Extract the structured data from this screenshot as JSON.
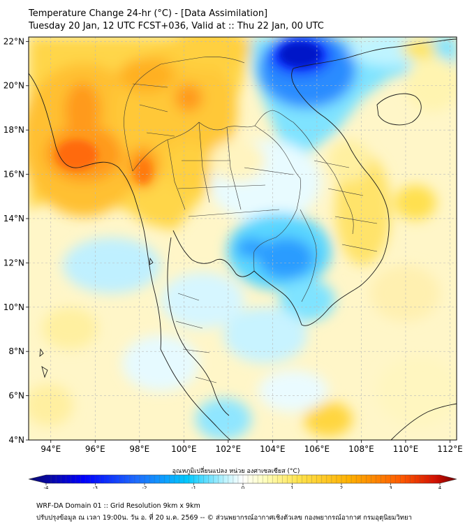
{
  "header": {
    "title_line1": "Temperature Change 24-hr (°C) - [Data Assimilation]",
    "title_line2": "Tuesday 20 Jan, 12 UTC FCST+036, Valid at :: Thu 22 Jan, 00 UTC"
  },
  "map": {
    "lat_labels": [
      "22°N",
      "20°N",
      "18°N",
      "16°N",
      "14°N",
      "12°N",
      "10°N",
      "8°N",
      "6°N",
      "4°N"
    ],
    "lat_values": [
      22,
      20,
      18,
      16,
      14,
      12,
      10,
      8,
      6,
      4
    ],
    "lon_labels": [
      "94°E",
      "96°E",
      "98°E",
      "100°E",
      "102°E",
      "104°E",
      "106°E",
      "108°E",
      "110°E",
      "112°E"
    ],
    "lon_values": [
      94,
      96,
      98,
      100,
      102,
      104,
      106,
      108,
      110,
      112
    ],
    "lon_range": [
      93,
      112.3
    ],
    "lat_range": [
      4,
      22.2
    ]
  },
  "colorbar": {
    "label": "อุณหภูมิเปลี่ยนแปลง หน่วย องศาเซลเซียส (°C)",
    "ticks": [
      "-4",
      "-3",
      "-2",
      "-1",
      "0",
      "1",
      "2",
      "3",
      "4"
    ],
    "range": [
      -4,
      4
    ],
    "colors": [
      "#0b0b6e",
      "#0000ff",
      "#1e6bff",
      "#00c8ff",
      "#bff4ff",
      "#ffffff",
      "#ffffc0",
      "#ffe34d",
      "#ffb000",
      "#ff5a00",
      "#d41000",
      "#6e0000"
    ]
  },
  "footer": {
    "line1": "WRF-DA Domain 01 :: Grid Resolution 9km x 9km",
    "line2": "ปรับปรุงข้อมูล ณ เวลา 19:00น. วัน อ. ที่ 20 ม.ค. 2569 -- © ส่วนพยากรณ์อากาศเชิงตัวเลข กองพยากรณ์อากาศ กรมอุตุนิยมวิทยา"
  }
}
